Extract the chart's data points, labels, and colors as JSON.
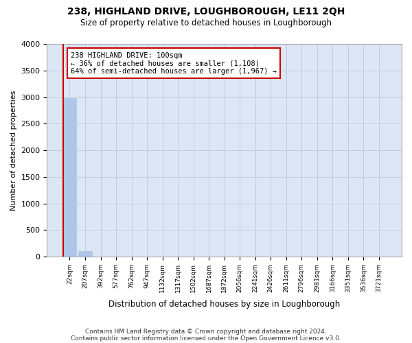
{
  "title": "238, HIGHLAND DRIVE, LOUGHBOROUGH, LE11 2QH",
  "subtitle": "Size of property relative to detached houses in Loughborough",
  "xlabel": "Distribution of detached houses by size in Loughborough",
  "ylabel": "Number of detached properties",
  "footnote1": "Contains HM Land Registry data © Crown copyright and database right 2024.",
  "footnote2": "Contains public sector information licensed under the Open Government Licence v3.0.",
  "bin_labels": [
    "22sqm",
    "207sqm",
    "392sqm",
    "577sqm",
    "762sqm",
    "947sqm",
    "1132sqm",
    "1317sqm",
    "1502sqm",
    "1687sqm",
    "1872sqm",
    "2056sqm",
    "2241sqm",
    "2426sqm",
    "2611sqm",
    "2796sqm",
    "2981sqm",
    "3166sqm",
    "3351sqm",
    "3536sqm",
    "3721sqm"
  ],
  "bar_values": [
    2980,
    110,
    0,
    0,
    0,
    0,
    0,
    0,
    0,
    0,
    0,
    0,
    0,
    0,
    0,
    0,
    0,
    0,
    0,
    0,
    0
  ],
  "bar_color": "#aec6e8",
  "bar_edge_color": "#aec6e8",
  "grid_color": "#c0c8d8",
  "background_color": "#dce6f5",
  "vline_color": "#cc0000",
  "annotation_text": "238 HIGHLAND DRIVE: 100sqm\n← 36% of detached houses are smaller (1,108)\n64% of semi-detached houses are larger (1,967) →",
  "annotation_box_color": "#cc0000",
  "ylim": [
    0,
    4000
  ],
  "yticks": [
    0,
    500,
    1000,
    1500,
    2000,
    2500,
    3000,
    3500,
    4000
  ]
}
